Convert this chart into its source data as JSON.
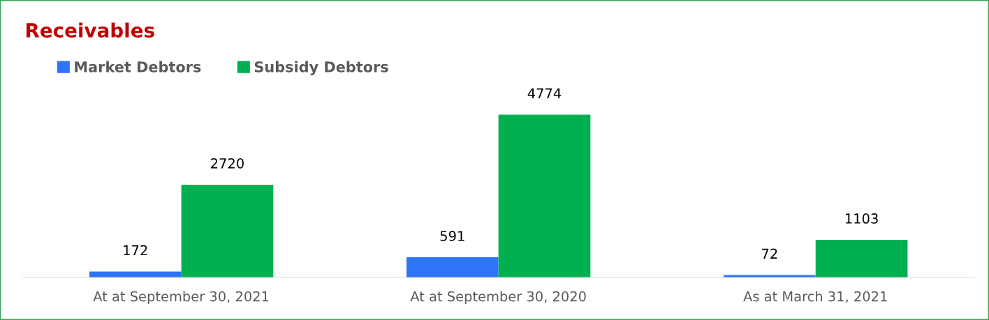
{
  "chart_data": {
    "type": "bar",
    "title": "Receivables",
    "categories": [
      "At at September 30, 2021",
      "At at September 30, 2020",
      "As at March 31, 2021"
    ],
    "series": [
      {
        "name": "Market Debtors",
        "color": "#2e75f6",
        "values": [
          172,
          591,
          72
        ]
      },
      {
        "name": "Subsidy Debtors",
        "color": "#00b050",
        "values": [
          2720,
          4774,
          1103
        ]
      }
    ],
    "data_labels": true,
    "legend": "top left"
  }
}
